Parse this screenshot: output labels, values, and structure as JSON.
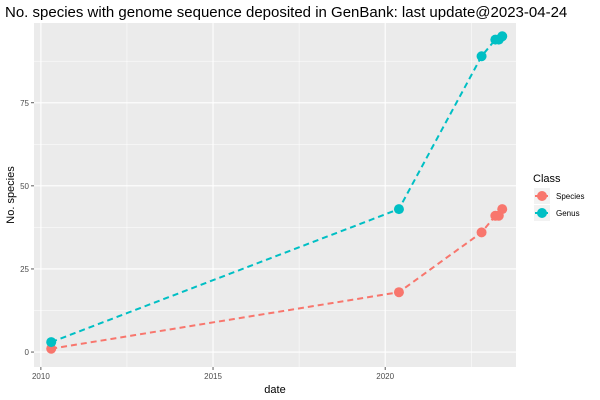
{
  "chart_data": {
    "type": "line",
    "title": "No. species with genome sequence deposited in GenBank: last update@2023-04-24",
    "xlabel": "date",
    "ylabel": "No. species",
    "x_ticks": [
      2010,
      2015,
      2020
    ],
    "y_ticks": [
      0,
      25,
      50,
      75
    ],
    "xlim": [
      2009.8,
      2023.8
    ],
    "ylim": [
      -4.5,
      99
    ],
    "grid": true,
    "legend": {
      "title": "Class",
      "placement": "right"
    },
    "series": [
      {
        "name": "Species",
        "color": "#F8766D",
        "points": [
          {
            "x": 2010.3,
            "y": 1
          },
          {
            "x": 2020.4,
            "y": 18
          },
          {
            "x": 2022.8,
            "y": 36
          },
          {
            "x": 2023.2,
            "y": 41
          },
          {
            "x": 2023.3,
            "y": 41
          },
          {
            "x": 2023.4,
            "y": 43
          }
        ]
      },
      {
        "name": "Genus",
        "color": "#00BFC4",
        "points": [
          {
            "x": 2010.3,
            "y": 3
          },
          {
            "x": 2020.4,
            "y": 43
          },
          {
            "x": 2022.8,
            "y": 89
          },
          {
            "x": 2023.2,
            "y": 94
          },
          {
            "x": 2023.3,
            "y": 94
          },
          {
            "x": 2023.4,
            "y": 95
          }
        ]
      }
    ]
  }
}
